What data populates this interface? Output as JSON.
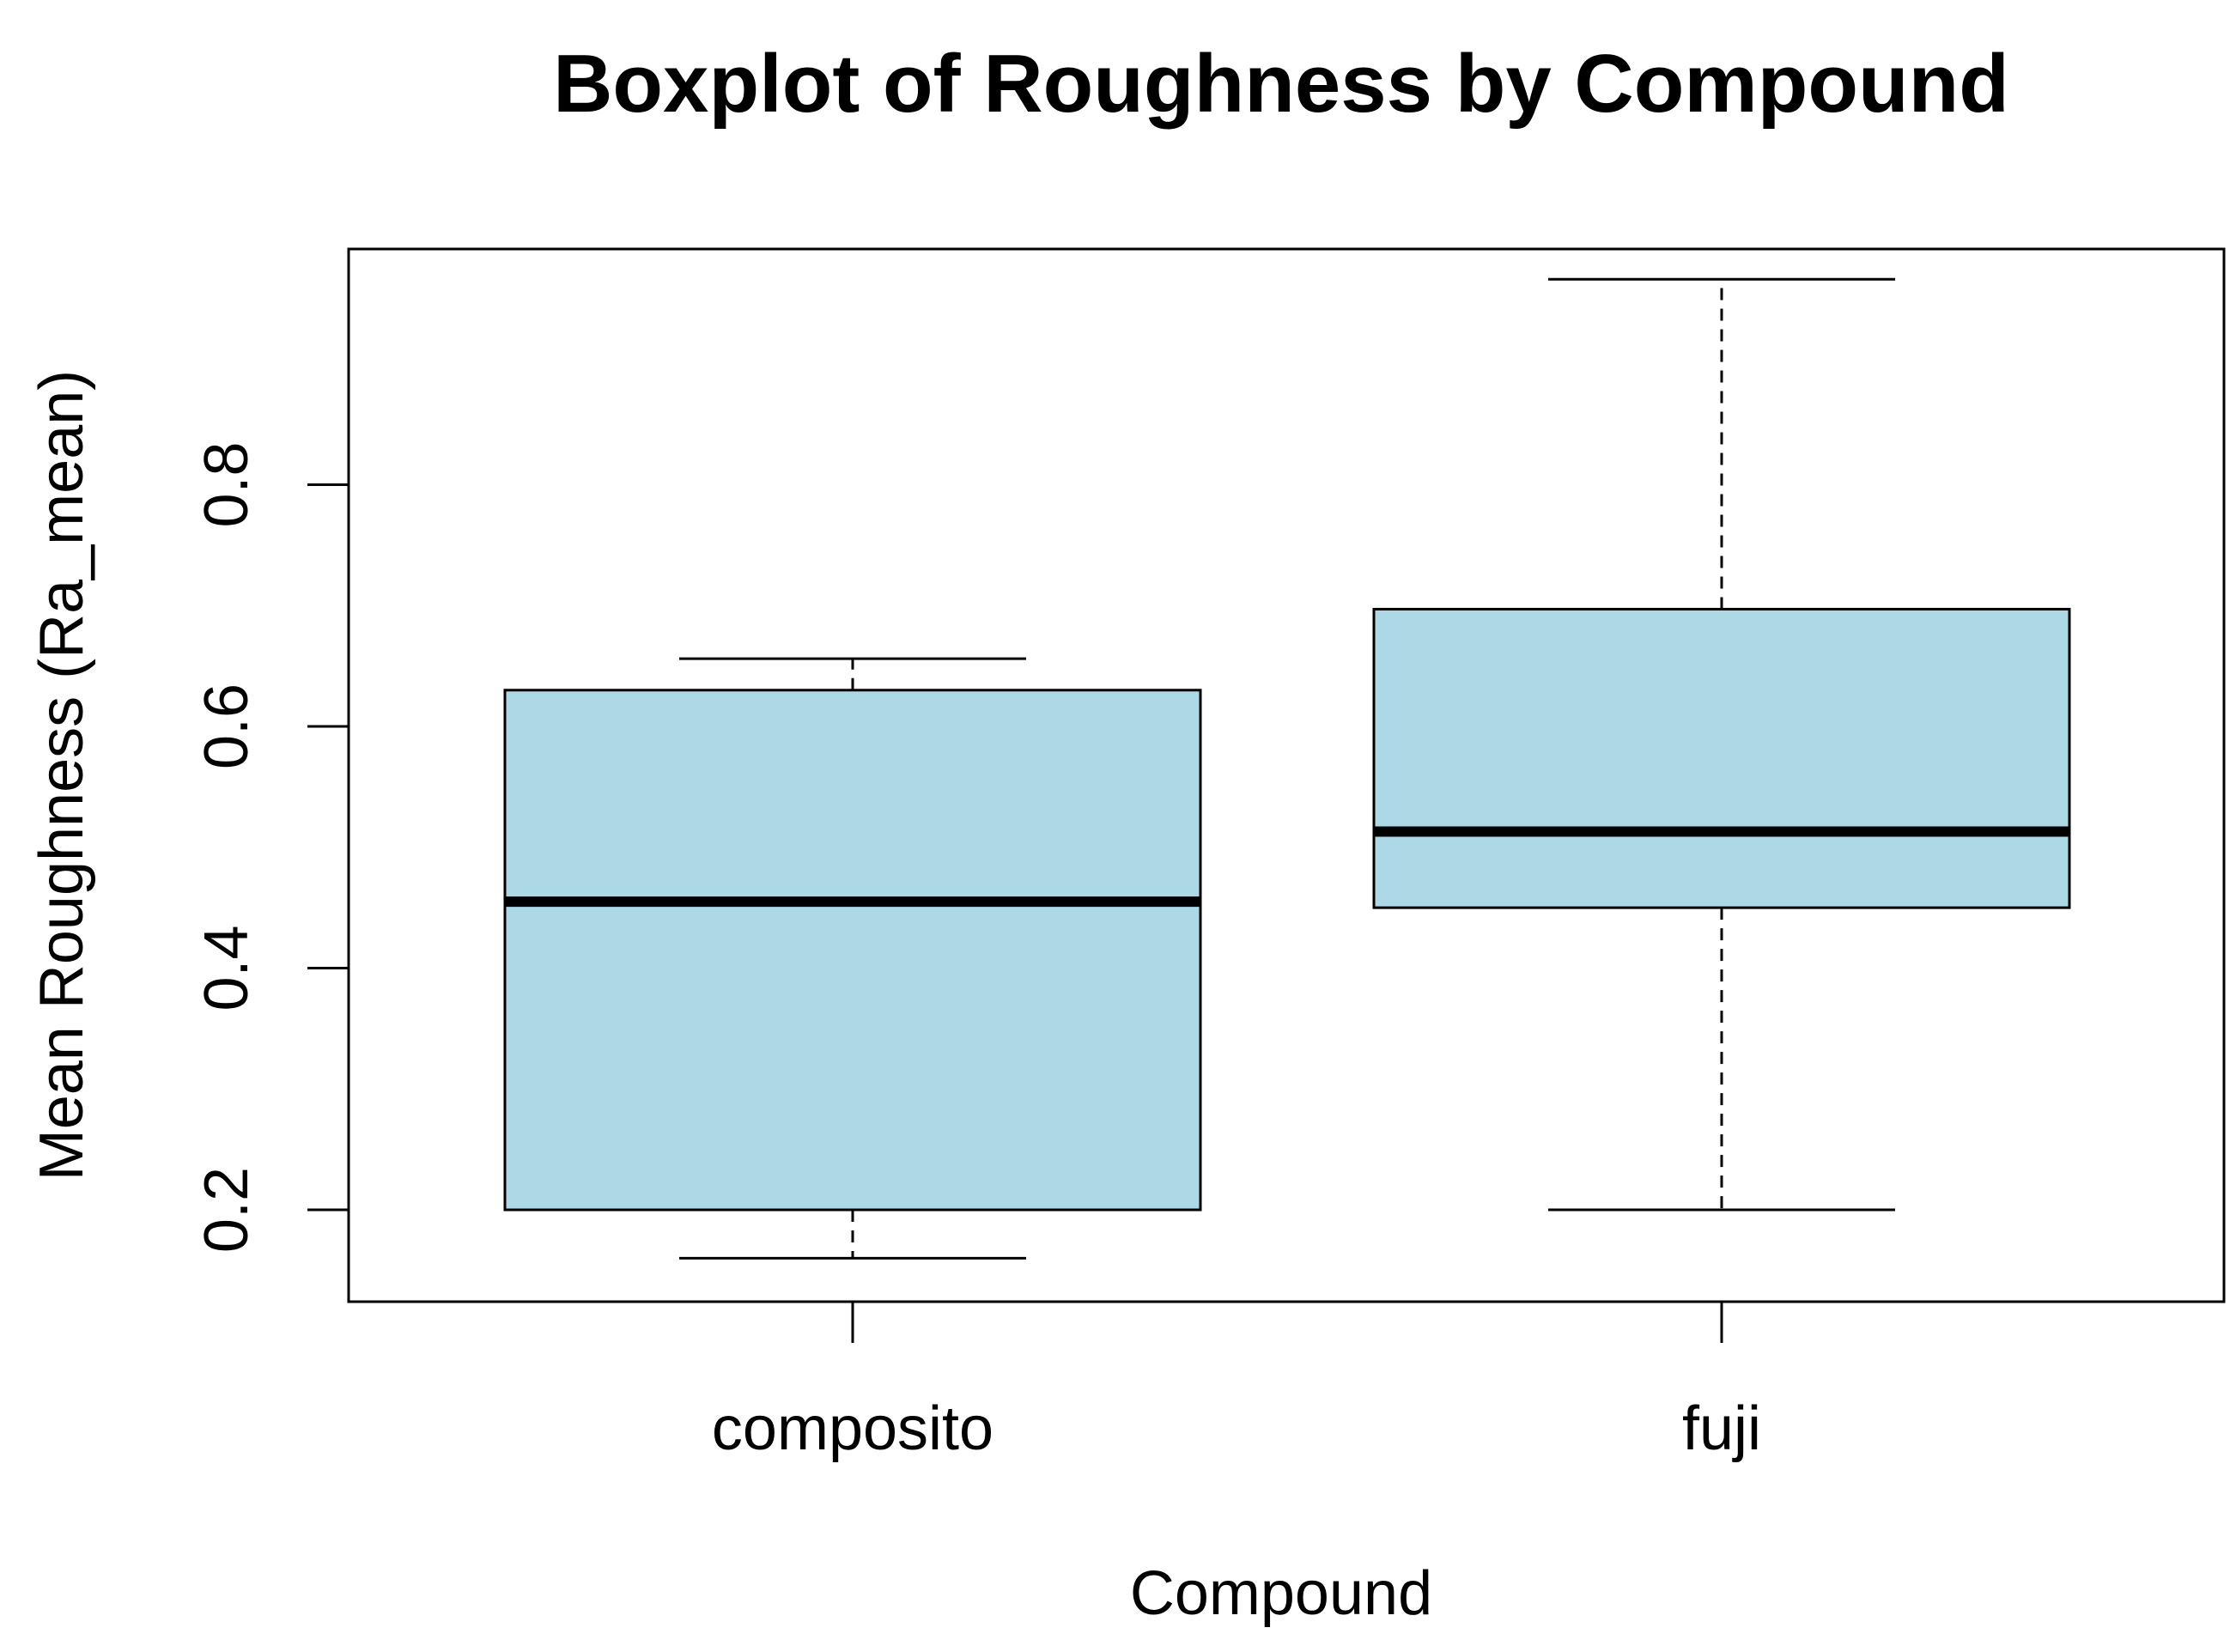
{
  "chart_data": {
    "type": "boxplot",
    "title": "Boxplot of Roughness by Compound",
    "xlabel": "Compound",
    "ylabel": "Mean Roughness (Ra_mean)",
    "categories": [
      "composito",
      "fuji"
    ],
    "boxes": [
      {
        "category": "composito",
        "whisker_low": 0.16,
        "q1": 0.2,
        "median": 0.455,
        "q3": 0.63,
        "whisker_high": 0.656
      },
      {
        "category": "fuji",
        "whisker_low": 0.2,
        "q1": 0.45,
        "median": 0.513,
        "q3": 0.697,
        "whisker_high": 0.97
      }
    ],
    "yticks": [
      0.2,
      0.4,
      0.6,
      0.8
    ],
    "ytick_labels": [
      "0.2",
      "0.4",
      "0.6",
      "0.8"
    ],
    "ylim": [
      0.124,
      0.995
    ],
    "box_fill": "#ADD8E6",
    "median_color": "#000000",
    "grid": false,
    "legend": "none"
  }
}
